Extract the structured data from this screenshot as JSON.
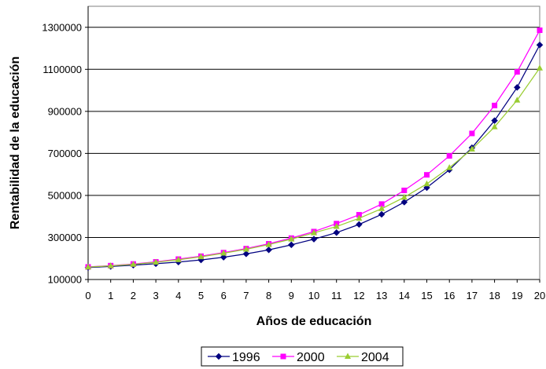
{
  "chart_data": {
    "type": "line",
    "title": "",
    "xlabel": "Años de educación",
    "ylabel": "Rentabilidad de la educación",
    "x": [
      0,
      1,
      2,
      3,
      4,
      5,
      6,
      7,
      8,
      9,
      10,
      11,
      12,
      13,
      14,
      15,
      16,
      17,
      18,
      19,
      20
    ],
    "xticks": [
      "0",
      "1",
      "2",
      "3",
      "4",
      "5",
      "6",
      "7",
      "8",
      "9",
      "10",
      "11",
      "12",
      "13",
      "14",
      "15",
      "16",
      "17",
      "18",
      "19",
      "20"
    ],
    "ylim": [
      100000,
      1400000
    ],
    "yticks": [
      100000,
      300000,
      500000,
      700000,
      900000,
      1100000,
      1300000
    ],
    "ytick_labels": [
      "100000",
      "300000",
      "500000",
      "700000",
      "900000",
      "1100000",
      "1300000"
    ],
    "grid": true,
    "legend_position": "bottom",
    "series": [
      {
        "name": "1996",
        "color": "#000080",
        "marker": "diamond",
        "values": [
          157000,
          162000,
          168000,
          175000,
          183000,
          193000,
          206000,
          222000,
          241000,
          265000,
          292000,
          323000,
          362000,
          410000,
          468000,
          537000,
          622000,
          727000,
          856000,
          1014000,
          1216000
        ]
      },
      {
        "name": "2000",
        "color": "#FF00FF",
        "marker": "square",
        "values": [
          160000,
          166000,
          174000,
          184000,
          197000,
          211000,
          228000,
          247000,
          270000,
          297000,
          328000,
          366000,
          408000,
          459000,
          524000,
          598000,
          688000,
          795000,
          928000,
          1088000,
          1286000
        ]
      },
      {
        "name": "2004",
        "color": "#9ACD32",
        "marker": "triangle",
        "values": [
          159000,
          165000,
          172000,
          182000,
          194000,
          208000,
          225000,
          244000,
          266000,
          292000,
          322000,
          352000,
          391000,
          437000,
          491000,
          555000,
          632000,
          720000,
          826000,
          953000,
          1106000
        ]
      }
    ]
  }
}
